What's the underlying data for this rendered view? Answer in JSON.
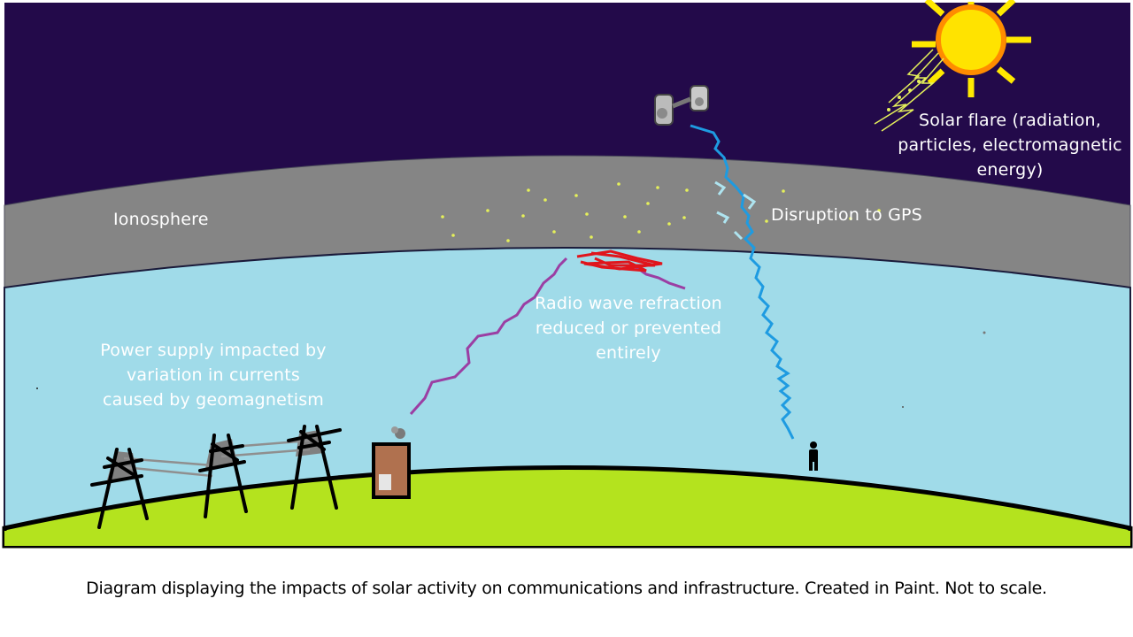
{
  "labels": {
    "ionosphere": "Ionosphere",
    "solar_flare": "Solar flare (radiation,\nparticles, electromagnetic\nenergy)",
    "gps": "Disruption to GPS",
    "radio": "Radio wave refraction\nreduced or prevented\nentirely",
    "power": "Power supply impacted by\nvariation in currents\ncaused by geomagnetism"
  },
  "caption": "Diagram displaying the impacts of solar activity on communications and infrastructure. Created in Paint. Not to scale.",
  "colors": {
    "space": "#230a4a",
    "ionosphere": "#858585",
    "sky": "#a0dbe9",
    "ground": "#b4e31e",
    "sun": "#ffd700",
    "sun_rays": "#ffe900",
    "gps_signal": "#1e9be1",
    "radio_wave": "#9b3ea3",
    "disruption": "#e0151c",
    "particles": "#e5f05a"
  },
  "icons": {
    "sun": "sun-icon",
    "satellite": "satellite-icon",
    "person": "person-icon",
    "building": "building-icon",
    "pylon": "power-pylon-icon"
  }
}
